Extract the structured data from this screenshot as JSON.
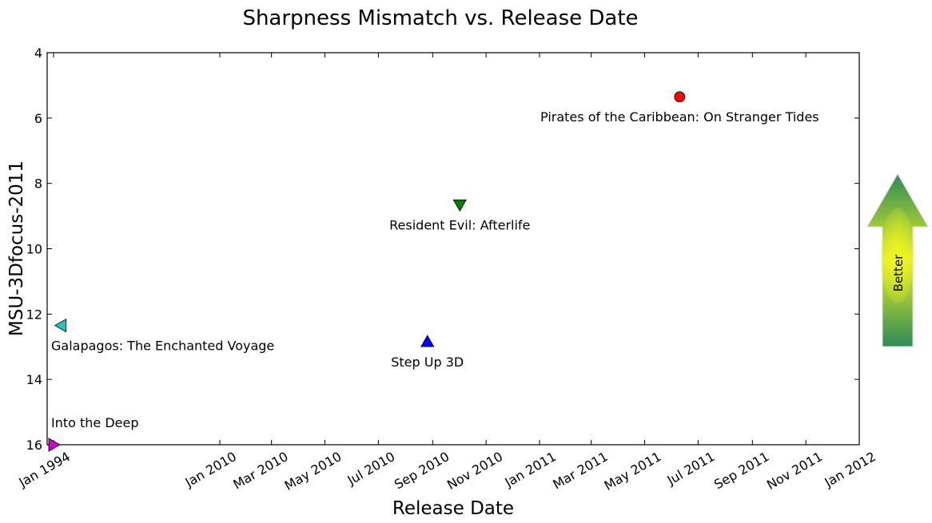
{
  "chart_data": {
    "type": "scatter",
    "title": "Sharpness Mismatch vs. Release Date",
    "xlabel": "Release Date",
    "ylabel": "MSU-3Dfocus-2011",
    "y_inverted": true,
    "ylim": [
      4,
      16
    ],
    "yticks": [
      4,
      6,
      8,
      10,
      12,
      14,
      16
    ],
    "xticks": [
      {
        "date": "1994-01",
        "label": "Jan 1994"
      },
      {
        "date": "2010-01",
        "label": "Jan 2010"
      },
      {
        "date": "2010-03",
        "label": "Mar 2010"
      },
      {
        "date": "2010-05",
        "label": "May 2010"
      },
      {
        "date": "2010-07",
        "label": "Jul 2010"
      },
      {
        "date": "2010-09",
        "label": "Sep 2010"
      },
      {
        "date": "2010-11",
        "label": "Nov 2010"
      },
      {
        "date": "2011-01",
        "label": "Jan 2011"
      },
      {
        "date": "2011-03",
        "label": "Mar 2011"
      },
      {
        "date": "2011-05",
        "label": "May 2011"
      },
      {
        "date": "2011-07",
        "label": "Jul 2011"
      },
      {
        "date": "2011-09",
        "label": "Sep 2011"
      },
      {
        "date": "2011-11",
        "label": "Nov 2011"
      },
      {
        "date": "2012-01",
        "label": "Jan 2012"
      }
    ],
    "points": [
      {
        "label": "Into the Deep",
        "date": "1994-01",
        "y": 16.0,
        "marker": "triangle-right",
        "color": "#cc00cc"
      },
      {
        "label": "Galapagos: The Enchanted Voyage",
        "date": "1994-10",
        "y": 12.35,
        "marker": "triangle-left",
        "color": "#22c4c4"
      },
      {
        "label": "Step Up 3D",
        "date": "2010-08-26",
        "y": 12.85,
        "marker": "triangle-up",
        "color": "#0000ff"
      },
      {
        "label": "Resident Evil: Afterlife",
        "date": "2010-10-02",
        "y": 8.65,
        "marker": "triangle-down",
        "color": "#008000"
      },
      {
        "label": "Pirates of the Caribbean: On Stranger Tides",
        "date": "2011-06-10",
        "y": 5.35,
        "marker": "circle",
        "color": "#ff0000"
      }
    ],
    "grid": false,
    "legend": "none",
    "annotation": {
      "text": "Better",
      "direction": "up",
      "colors": [
        "#2e8b57",
        "#e8f020",
        "#2e8b57"
      ]
    }
  }
}
